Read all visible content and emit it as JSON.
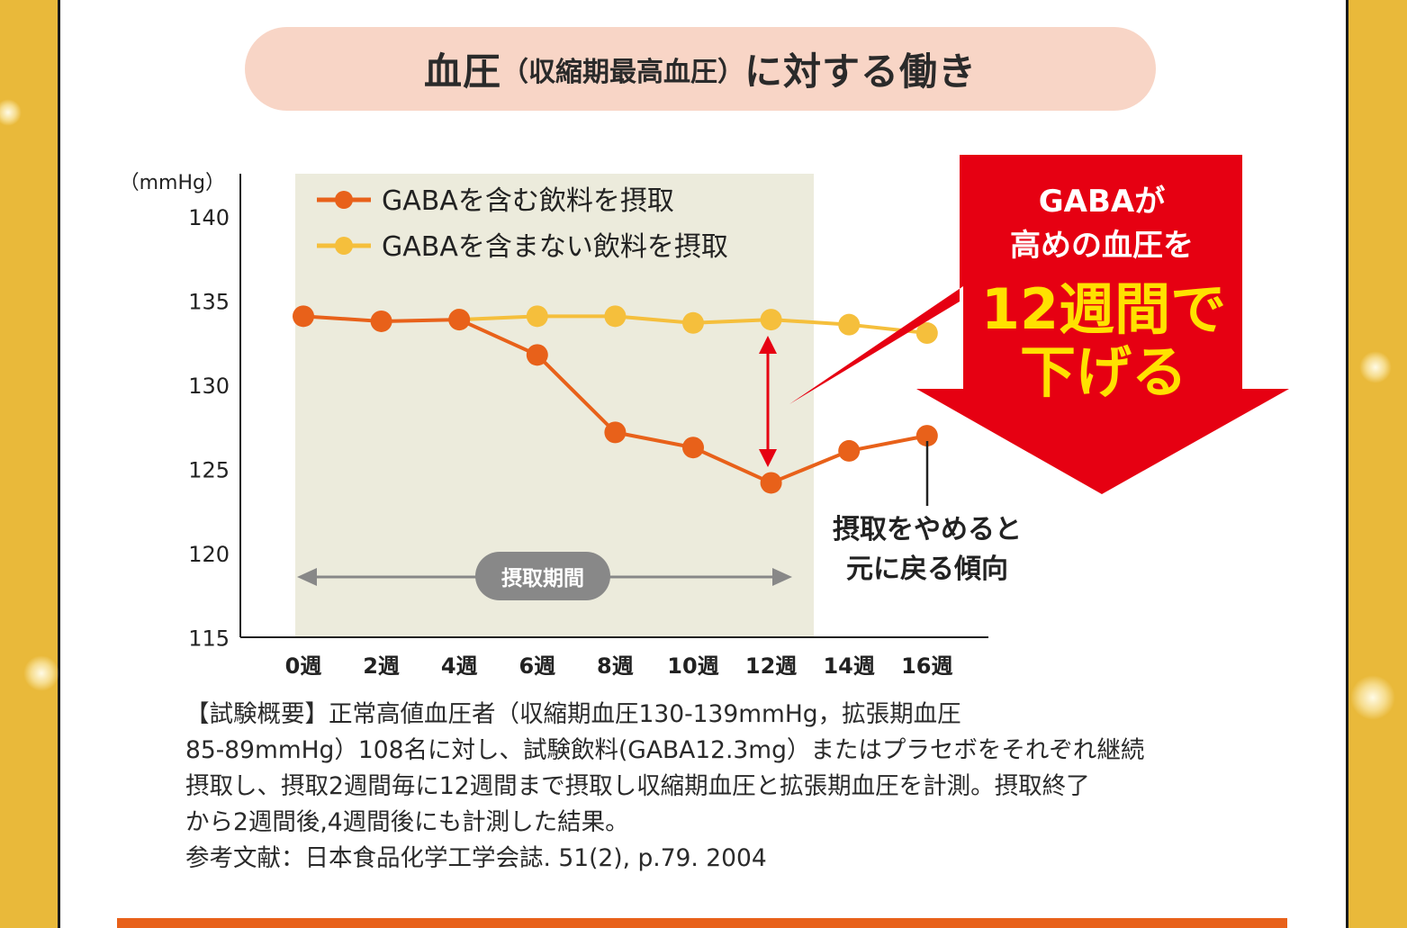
{
  "title": {
    "main_prefix": "血圧",
    "sub": "（収縮期最高血圧）",
    "main_suffix": "に対する働き"
  },
  "colors": {
    "gaba": "#e8611a",
    "placebo": "#f5bf3c",
    "shade": "#ecebdc",
    "callout": "#e60012",
    "callout_highlight": "#ffe100",
    "gold": "#e9b93a"
  },
  "chart_data": {
    "type": "line",
    "title": "血圧（収縮期最高血圧）に対する働き",
    "ylabel": "（mmHg）",
    "xlabel": "",
    "ylim": [
      115,
      140
    ],
    "yticks": [
      140,
      135,
      130,
      125,
      120,
      115
    ],
    "categories": [
      "0週",
      "2週",
      "4週",
      "6週",
      "8週",
      "10週",
      "12週",
      "14週",
      "16週"
    ],
    "series": [
      {
        "name": "GABAを含む飲料を摂取",
        "color": "#e8611a",
        "values": [
          134.1,
          133.8,
          133.9,
          131.8,
          127.2,
          126.3,
          124.2,
          126.1,
          127.0
        ]
      },
      {
        "name": "GABAを含まない飲料を摂取",
        "color": "#f5bf3c",
        "values": [
          134.1,
          133.8,
          133.9,
          134.1,
          134.1,
          133.7,
          133.9,
          133.6,
          133.1
        ]
      }
    ],
    "intake_period_label": "摂取期間",
    "intake_period_range": [
      "0週",
      "12週"
    ],
    "annotation_stop": [
      "摂取をやめると",
      "元に戻る傾向"
    ],
    "grid": false,
    "legend": "top-left"
  },
  "callout": {
    "line1": "GABAが",
    "line2": "高めの血圧を",
    "line3": "12週間で",
    "line4": "下げる"
  },
  "summary": {
    "line1": "【試験概要】正常高値血圧者（収縮期血圧130-139mmHg，拡張期血圧",
    "line2": "85-89mmHg）108名に対し、試験飲料(GABA12.3mg）またはプラセボをそれぞれ継続",
    "line3": "摂取し、摂取2週間毎に12週間まで摂取し収縮期血圧と拡張期血圧を計測。摂取終了",
    "line4": "から2週間後,4週間後にも計測した結果。",
    "line5": "参考文献：日本食品化学工学会誌. 51(2), p.79. 2004"
  }
}
